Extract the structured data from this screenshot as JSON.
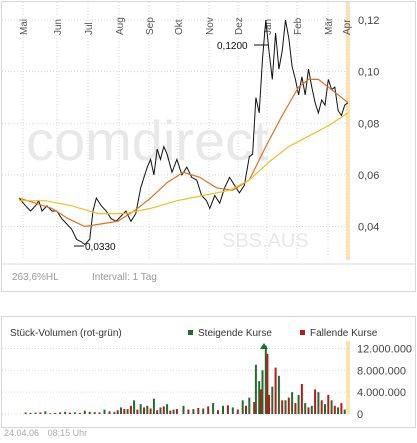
{
  "watermark": {
    "brand": "comdirect",
    "symbol": "SBS.AUS"
  },
  "colors": {
    "price": "#111111",
    "ma_fast": "#e07020",
    "ma_slow": "#f0c020",
    "rising": "#1e6e2e",
    "falling": "#b81a1a",
    "grid": "#d8d8d8",
    "watermark": "#e8e8e8",
    "axis_highlight": "#fbe3b0"
  },
  "price_chart": {
    "footer_left": "263,6%HL",
    "footer_right": "Intervall: 1 Tag",
    "annotations": {
      "high": "0,1200",
      "low": "0,0330"
    }
  },
  "volume_chart": {
    "title": "Stück-Volumen (rot-grün)",
    "legend": {
      "rising": "Steigende Kurse",
      "falling": "Fallende Kurse"
    }
  },
  "footer": {
    "date": "24.04.06",
    "time": "08:15 Uhr"
  },
  "chart_data": [
    {
      "type": "line",
      "x_ticks": [
        "Mai",
        "Jun",
        "Jul",
        "Aug",
        "Sep",
        "Okt",
        "Nov",
        "Dez",
        "Jan",
        "Feb",
        "Mär",
        "Apr"
      ],
      "y_ticks": [
        "0,12",
        "0,10",
        "0,08",
        "0,06",
        "0,04"
      ],
      "ylim": [
        0.027,
        0.127
      ],
      "grid": true,
      "series": [
        {
          "key": "price",
          "points": [
            [
              0.0,
              0.051
            ],
            [
              0.02,
              0.048
            ],
            [
              0.035,
              0.046
            ],
            [
              0.05,
              0.048
            ],
            [
              0.06,
              0.05
            ],
            [
              0.07,
              0.046
            ],
            [
              0.085,
              0.048
            ],
            [
              0.1,
              0.046
            ],
            [
              0.115,
              0.046
            ],
            [
              0.13,
              0.043
            ],
            [
              0.145,
              0.041
            ],
            [
              0.16,
              0.039
            ],
            [
              0.175,
              0.035
            ],
            [
              0.19,
              0.034
            ],
            [
              0.2,
              0.033
            ],
            [
              0.215,
              0.035
            ],
            [
              0.225,
              0.046
            ],
            [
              0.235,
              0.051
            ],
            [
              0.25,
              0.048
            ],
            [
              0.265,
              0.046
            ],
            [
              0.28,
              0.043
            ],
            [
              0.295,
              0.042
            ],
            [
              0.31,
              0.044
            ],
            [
              0.325,
              0.046
            ],
            [
              0.34,
              0.042
            ],
            [
              0.355,
              0.045
            ],
            [
              0.37,
              0.055
            ],
            [
              0.38,
              0.059
            ],
            [
              0.39,
              0.063
            ],
            [
              0.4,
              0.066
            ],
            [
              0.41,
              0.06
            ],
            [
              0.42,
              0.07
            ],
            [
              0.43,
              0.066
            ],
            [
              0.44,
              0.071
            ],
            [
              0.45,
              0.068
            ],
            [
              0.465,
              0.061
            ],
            [
              0.48,
              0.066
            ],
            [
              0.495,
              0.06
            ],
            [
              0.51,
              0.063
            ],
            [
              0.525,
              0.059
            ],
            [
              0.54,
              0.058
            ],
            [
              0.555,
              0.052
            ],
            [
              0.57,
              0.05
            ],
            [
              0.58,
              0.047
            ],
            [
              0.595,
              0.052
            ],
            [
              0.61,
              0.049
            ],
            [
              0.625,
              0.055
            ],
            [
              0.64,
              0.059
            ],
            [
              0.655,
              0.056
            ],
            [
              0.67,
              0.053
            ],
            [
              0.685,
              0.056
            ],
            [
              0.7,
              0.067
            ],
            [
              0.71,
              0.068
            ],
            [
              0.72,
              0.09
            ],
            [
              0.73,
              0.084
            ],
            [
              0.74,
              0.105
            ],
            [
              0.75,
              0.12
            ],
            [
              0.76,
              0.108
            ],
            [
              0.77,
              0.097
            ],
            [
              0.78,
              0.115
            ],
            [
              0.79,
              0.101
            ],
            [
              0.8,
              0.108
            ],
            [
              0.81,
              0.12
            ],
            [
              0.82,
              0.113
            ],
            [
              0.83,
              0.102
            ],
            [
              0.84,
              0.097
            ],
            [
              0.85,
              0.091
            ],
            [
              0.86,
              0.098
            ],
            [
              0.87,
              0.091
            ],
            [
              0.88,
              0.101
            ],
            [
              0.89,
              0.094
            ],
            [
              0.9,
              0.088
            ],
            [
              0.91,
              0.084
            ],
            [
              0.92,
              0.089
            ],
            [
              0.93,
              0.087
            ],
            [
              0.94,
              0.097
            ],
            [
              0.95,
              0.093
            ],
            [
              0.96,
              0.094
            ],
            [
              0.97,
              0.085
            ],
            [
              0.98,
              0.083
            ],
            [
              0.99,
              0.087
            ],
            [
              1.0,
              0.088
            ]
          ]
        },
        {
          "key": "ma_fast",
          "points": [
            [
              0.0,
              0.051
            ],
            [
              0.05,
              0.049
            ],
            [
              0.1,
              0.047
            ],
            [
              0.15,
              0.043
            ],
            [
              0.2,
              0.04
            ],
            [
              0.25,
              0.041
            ],
            [
              0.3,
              0.042
            ],
            [
              0.35,
              0.046
            ],
            [
              0.4,
              0.051
            ],
            [
              0.45,
              0.057
            ],
            [
              0.5,
              0.061
            ],
            [
              0.55,
              0.059
            ],
            [
              0.6,
              0.055
            ],
            [
              0.65,
              0.054
            ],
            [
              0.7,
              0.058
            ],
            [
              0.75,
              0.071
            ],
            [
              0.8,
              0.083
            ],
            [
              0.85,
              0.094
            ],
            [
              0.88,
              0.097
            ],
            [
              0.91,
              0.097
            ],
            [
              0.95,
              0.093
            ],
            [
              1.0,
              0.088
            ]
          ]
        },
        {
          "key": "ma_slow",
          "points": [
            [
              0.0,
              0.05
            ],
            [
              0.08,
              0.05
            ],
            [
              0.16,
              0.048
            ],
            [
              0.24,
              0.045
            ],
            [
              0.32,
              0.045
            ],
            [
              0.4,
              0.047
            ],
            [
              0.48,
              0.05
            ],
            [
              0.56,
              0.052
            ],
            [
              0.64,
              0.054
            ],
            [
              0.7,
              0.058
            ],
            [
              0.76,
              0.065
            ],
            [
              0.82,
              0.071
            ],
            [
              0.88,
              0.075
            ],
            [
              0.94,
              0.079
            ],
            [
              1.0,
              0.084
            ]
          ]
        }
      ]
    },
    {
      "type": "bar",
      "y_ticks": [
        "12.000.000",
        "8.000.000",
        "4.000.000",
        "0"
      ],
      "ylim": [
        0,
        13000000
      ],
      "series": [
        {
          "name": "Steigende Kurse",
          "key": "rising",
          "x": [
            0.02,
            0.05,
            0.08,
            0.11,
            0.14,
            0.17,
            0.2,
            0.23,
            0.26,
            0.29,
            0.31,
            0.33,
            0.35,
            0.37,
            0.39,
            0.41,
            0.43,
            0.45,
            0.47,
            0.5,
            0.53,
            0.56,
            0.59,
            0.62,
            0.65,
            0.68,
            0.7,
            0.72,
            0.73,
            0.74,
            0.75,
            0.77,
            0.79,
            0.81,
            0.83,
            0.85,
            0.87,
            0.89,
            0.91,
            0.93,
            0.95,
            0.97,
            0.99
          ],
          "values": [
            300000,
            250000,
            500000,
            200000,
            400000,
            300000,
            600000,
            350000,
            800000,
            400000,
            1200000,
            900000,
            2500000,
            1800000,
            1500000,
            2800000,
            1200000,
            1800000,
            800000,
            1500000,
            900000,
            1000000,
            2000000,
            1500000,
            1200000,
            2500000,
            3000000,
            9000000,
            6000000,
            8000000,
            12500000,
            5000000,
            7000000,
            2500000,
            4000000,
            3500000,
            2000000,
            1500000,
            4000000,
            1800000,
            2500000,
            1200000,
            800000
          ]
        },
        {
          "name": "Fallende Kurse",
          "key": "falling",
          "x": [
            0.035,
            0.065,
            0.095,
            0.125,
            0.155,
            0.185,
            0.215,
            0.245,
            0.275,
            0.3,
            0.32,
            0.34,
            0.36,
            0.38,
            0.4,
            0.42,
            0.44,
            0.46,
            0.48,
            0.515,
            0.545,
            0.575,
            0.605,
            0.635,
            0.665,
            0.69,
            0.715,
            0.735,
            0.755,
            0.76,
            0.78,
            0.8,
            0.82,
            0.84,
            0.86,
            0.88,
            0.9,
            0.92,
            0.94,
            0.96,
            0.98
          ],
          "values": [
            200000,
            300000,
            150000,
            300000,
            250000,
            200000,
            400000,
            300000,
            500000,
            700000,
            900000,
            1500000,
            800000,
            1200000,
            1000000,
            700000,
            1400000,
            600000,
            900000,
            800000,
            1100000,
            1400000,
            700000,
            1600000,
            800000,
            1500000,
            2200000,
            4500000,
            11000000,
            3500000,
            8500000,
            2500000,
            3000000,
            2000000,
            5500000,
            1200000,
            4500000,
            2500000,
            3500000,
            1500000,
            2000000
          ]
        }
      ]
    }
  ]
}
